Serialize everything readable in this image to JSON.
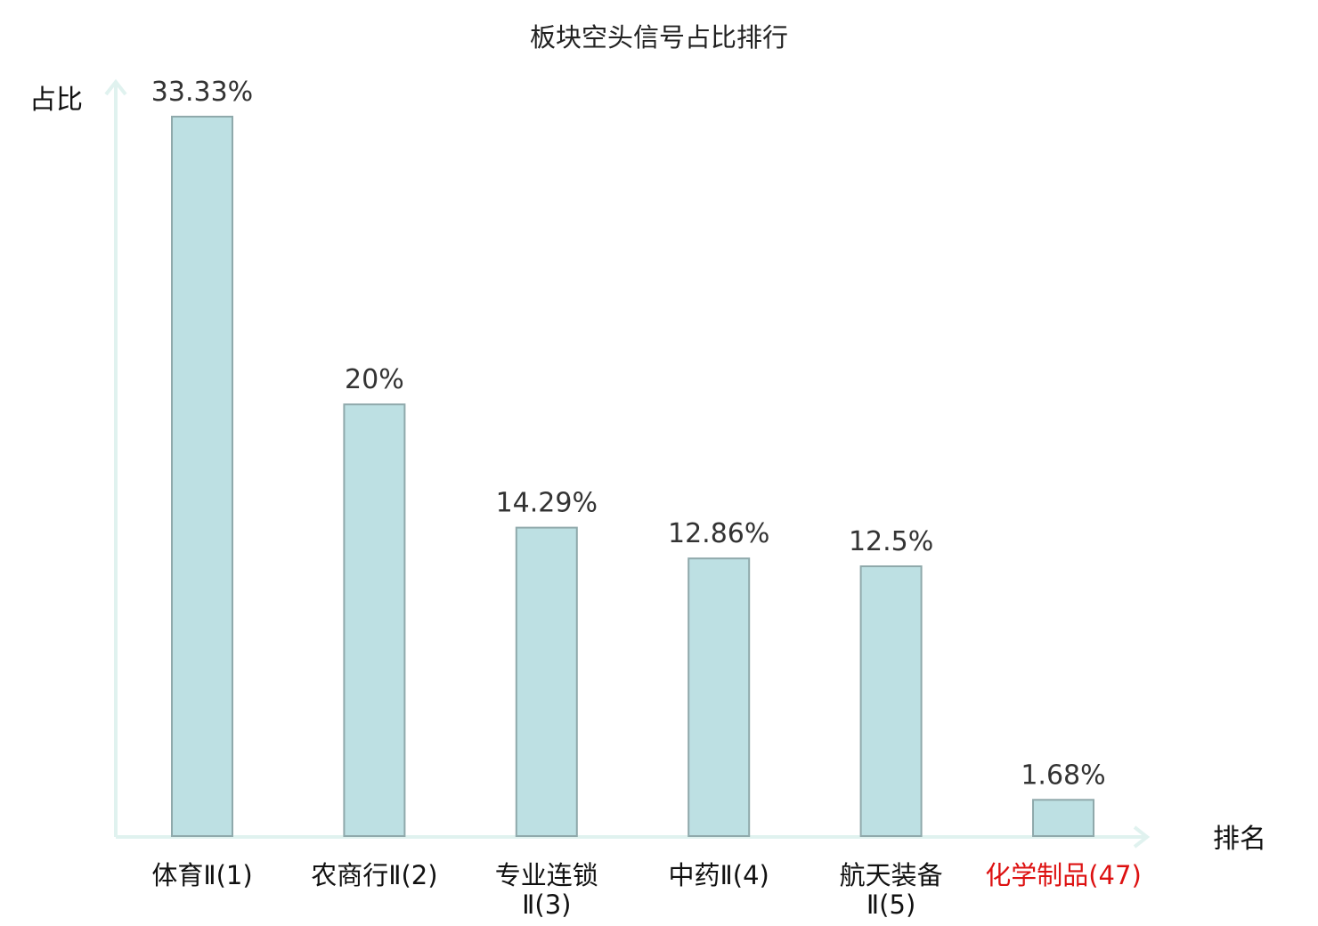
{
  "chart_data": {
    "type": "bar",
    "title": "板块空头信号占比排行",
    "ylabel": "占比",
    "xlabel": "排名",
    "ylim": [
      0,
      35
    ],
    "grid": false,
    "legend": "none",
    "categories": [
      [
        "体育Ⅱ(1)"
      ],
      [
        "农商行Ⅱ(2)"
      ],
      [
        "专业连锁",
        "Ⅱ(3)"
      ],
      [
        "中药Ⅱ(4)"
      ],
      [
        "航天装备",
        "Ⅱ(5)"
      ],
      [
        "化学制品(47)"
      ]
    ],
    "values": [
      33.33,
      20,
      14.29,
      12.86,
      12.5,
      1.68
    ],
    "value_labels": [
      "33.33%",
      "20%",
      "14.29%",
      "12.86%",
      "12.5%",
      "1.68%"
    ],
    "highlight_index": 5,
    "colors": {
      "bar_fill": "#bde0e3",
      "bar_stroke": "#8fa9ab",
      "axis": "#e0f2ef",
      "highlight_text": "#dd1111"
    }
  }
}
